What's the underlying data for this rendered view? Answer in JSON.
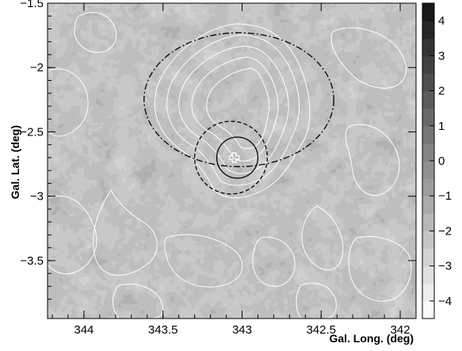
{
  "chart_data": {
    "type": "heatmap",
    "xlabel": "Gal. Long. (deg)",
    "ylabel": "Gal. Lat. (deg)",
    "xlim": [
      344.23,
      341.9
    ],
    "ylim": [
      -3.95,
      -1.5
    ],
    "x_direction": "reversed",
    "x_ticks": [
      {
        "value": 344,
        "label": "344"
      },
      {
        "value": 343.5,
        "label": "343.5"
      },
      {
        "value": 343,
        "label": "343"
      },
      {
        "value": 342.5,
        "label": "342.5"
      },
      {
        "value": 342,
        "label": "342"
      }
    ],
    "y_ticks": [
      {
        "value": -1.5,
        "label": "−1.5"
      },
      {
        "value": -2,
        "label": "−2"
      },
      {
        "value": -2.5,
        "label": "−2.5"
      },
      {
        "value": -3,
        "label": "−3"
      },
      {
        "value": -3.5,
        "label": "−3.5"
      }
    ],
    "colorbar": {
      "range": [
        -4.5,
        4.5
      ],
      "ticks": [
        {
          "value": 4,
          "label": "4"
        },
        {
          "value": 3,
          "label": "3"
        },
        {
          "value": 2,
          "label": "2"
        },
        {
          "value": 1,
          "label": "1"
        },
        {
          "value": 0,
          "label": "0"
        },
        {
          "value": -1,
          "label": "−1"
        },
        {
          "value": -2,
          "label": "−2"
        },
        {
          "value": -3,
          "label": "−3"
        },
        {
          "value": -4,
          "label": "−4"
        }
      ],
      "colormap": "grayscale, white = low, black = high",
      "levels": 18
    },
    "grid": false,
    "overlays": {
      "marker": {
        "shape": "cross",
        "l": 343.05,
        "b": -2.7
      },
      "solid_circle": {
        "l": 343.03,
        "b": -2.7,
        "r_deg": 0.13
      },
      "dashed_circle": {
        "l": 343.07,
        "b": -2.7,
        "r_deg": 0.23
      },
      "dashdot_ellipse": {
        "l": 343.02,
        "b": -2.25,
        "semi_l_deg": 0.6,
        "semi_b_deg": 0.52
      },
      "white_contours": "significance contours (white lines)"
    }
  }
}
